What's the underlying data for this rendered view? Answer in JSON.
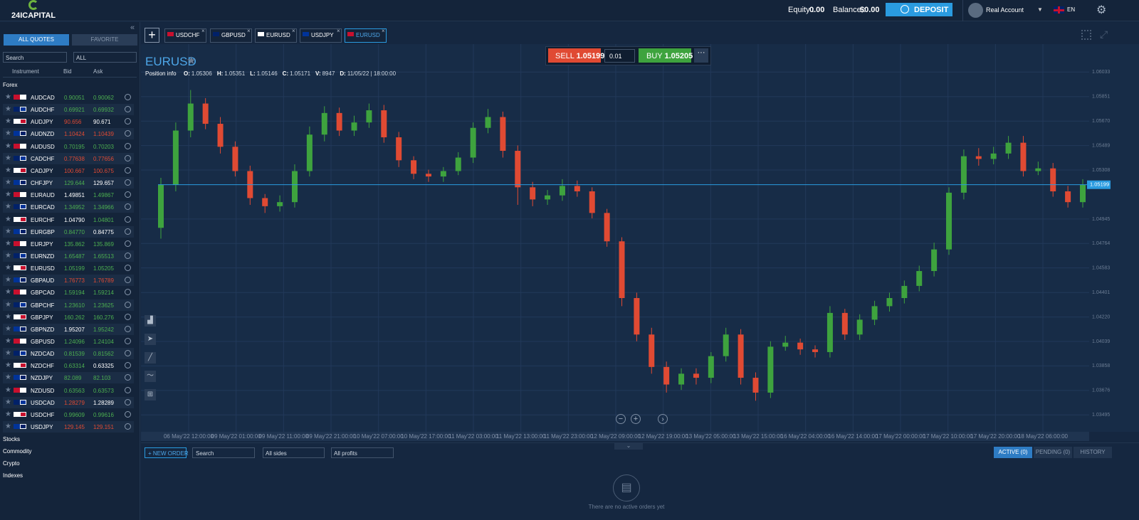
{
  "header": {
    "logo": "24ICAPITAL",
    "equity_label": "Equity :",
    "equity": "0.00",
    "balance_label": "Balance :",
    "balance": "$0.00",
    "deposit": "DEPOSIT",
    "account": "Real Account",
    "language": "EN"
  },
  "sidebar": {
    "tabs": [
      "ALL QUOTES",
      "FAVORITE"
    ],
    "search": "Search",
    "filter": "ALL",
    "columns": [
      "Instrument",
      "Bid",
      "Ask"
    ],
    "group": "Forex",
    "rows": [
      {
        "symbol": "AUDCAD",
        "bid": "0.90051",
        "ask": "0.90062",
        "bid_color": "#4caf50",
        "ask_color": "#4caf50"
      },
      {
        "symbol": "AUDCHF",
        "bid": "0.69921",
        "ask": "0.69932",
        "bid_color": "#4caf50",
        "ask_color": "#4caf50"
      },
      {
        "symbol": "AUDJPY",
        "bid": "90.656",
        "ask": "90.671",
        "bid_color": "#e04a33",
        "ask_color": "#ffffff"
      },
      {
        "symbol": "AUDNZD",
        "bid": "1.10424",
        "ask": "1.10439",
        "bid_color": "#e04a33",
        "ask_color": "#e04a33"
      },
      {
        "symbol": "AUDUSD",
        "bid": "0.70195",
        "ask": "0.70203",
        "bid_color": "#4caf50",
        "ask_color": "#4caf50"
      },
      {
        "symbol": "CADCHF",
        "bid": "0.77638",
        "ask": "0.77656",
        "bid_color": "#e04a33",
        "ask_color": "#e04a33"
      },
      {
        "symbol": "CADJPY",
        "bid": "100.667",
        "ask": "100.675",
        "bid_color": "#e04a33",
        "ask_color": "#e04a33"
      },
      {
        "symbol": "CHFJPY",
        "bid": "129.644",
        "ask": "129.657",
        "bid_color": "#4caf50",
        "ask_color": "#ffffff"
      },
      {
        "symbol": "EURAUD",
        "bid": "1.49851",
        "ask": "1.49867",
        "bid_color": "#ffffff",
        "ask_color": "#4caf50"
      },
      {
        "symbol": "EURCAD",
        "bid": "1.34952",
        "ask": "1.34966",
        "bid_color": "#4caf50",
        "ask_color": "#4caf50"
      },
      {
        "symbol": "EURCHF",
        "bid": "1.04790",
        "ask": "1.04801",
        "bid_color": "#ffffff",
        "ask_color": "#4caf50"
      },
      {
        "symbol": "EURGBP",
        "bid": "0.84770",
        "ask": "0.84775",
        "bid_color": "#4caf50",
        "ask_color": "#ffffff"
      },
      {
        "symbol": "EURJPY",
        "bid": "135.862",
        "ask": "135.869",
        "bid_color": "#4caf50",
        "ask_color": "#4caf50"
      },
      {
        "symbol": "EURNZD",
        "bid": "1.65487",
        "ask": "1.65513",
        "bid_color": "#4caf50",
        "ask_color": "#4caf50"
      },
      {
        "symbol": "EURUSD",
        "bid": "1.05199",
        "ask": "1.05205",
        "bid_color": "#4caf50",
        "ask_color": "#4caf50"
      },
      {
        "symbol": "GBPAUD",
        "bid": "1.76773",
        "ask": "1.76789",
        "bid_color": "#e04a33",
        "ask_color": "#e04a33"
      },
      {
        "symbol": "GBPCAD",
        "bid": "1.59194",
        "ask": "1.59214",
        "bid_color": "#4caf50",
        "ask_color": "#4caf50"
      },
      {
        "symbol": "GBPCHF",
        "bid": "1.23610",
        "ask": "1.23625",
        "bid_color": "#4caf50",
        "ask_color": "#4caf50"
      },
      {
        "symbol": "GBPJPY",
        "bid": "160.262",
        "ask": "160.276",
        "bid_color": "#4caf50",
        "ask_color": "#4caf50"
      },
      {
        "symbol": "GBPNZD",
        "bid": "1.95207",
        "ask": "1.95242",
        "bid_color": "#ffffff",
        "ask_color": "#4caf50"
      },
      {
        "symbol": "GBPUSD",
        "bid": "1.24096",
        "ask": "1.24104",
        "bid_color": "#4caf50",
        "ask_color": "#4caf50"
      },
      {
        "symbol": "NZDCAD",
        "bid": "0.81539",
        "ask": "0.81562",
        "bid_color": "#4caf50",
        "ask_color": "#4caf50"
      },
      {
        "symbol": "NZDCHF",
        "bid": "0.63314",
        "ask": "0.63325",
        "bid_color": "#4caf50",
        "ask_color": "#ffffff"
      },
      {
        "symbol": "NZDJPY",
        "bid": "82.089",
        "ask": "82.103",
        "bid_color": "#4caf50",
        "ask_color": "#4caf50"
      },
      {
        "symbol": "NZDUSD",
        "bid": "0.63563",
        "ask": "0.63573",
        "bid_color": "#4caf50",
        "ask_color": "#4caf50"
      },
      {
        "symbol": "USDCAD",
        "bid": "1.28279",
        "ask": "1.28289",
        "bid_color": "#e04a33",
        "ask_color": "#ffffff"
      },
      {
        "symbol": "USDCHF",
        "bid": "0.99609",
        "ask": "0.99616",
        "bid_color": "#4caf50",
        "ask_color": "#4caf50"
      },
      {
        "symbol": "USDJPY",
        "bid": "129.145",
        "ask": "129.151",
        "bid_color": "#e04a33",
        "ask_color": "#e04a33"
      }
    ],
    "groups": [
      "Stocks",
      "Commodity",
      "Crypto",
      "Indexes"
    ]
  },
  "tabs": {
    "items": [
      "USDCHF",
      "GBPUSD",
      "EURUSD",
      "USDJPY",
      "EURUSD"
    ],
    "active": 4
  },
  "trade": {
    "sell": "SELL",
    "sell_price": "1.05199",
    "lot": "0.01",
    "buy": "BUY",
    "buy_price": "1.05205"
  },
  "chart_data": {
    "type": "candlestick",
    "title": "EURUSD",
    "info": {
      "label": "Position info",
      "items": [
        {
          "key": "O:",
          "value": "1.05306"
        },
        {
          "key": "H:",
          "value": "1.05351"
        },
        {
          "key": "L:",
          "value": "1.05146"
        },
        {
          "key": "C:",
          "value": "1.05171"
        },
        {
          "key": "V:",
          "value": "8947"
        },
        {
          "key": "D:",
          "value": "11/05/22 | 18:00:00"
        }
      ]
    },
    "up_color": "#3ea33e",
    "down_color": "#e04a33",
    "open": [
      1.0488,
      1.052,
      1.056,
      1.058,
      1.0565,
      1.0548,
      1.053,
      1.051,
      1.0504,
      1.0507,
      1.053,
      1.0557,
      1.0573,
      1.056,
      1.0566,
      1.0575,
      1.0555,
      1.0538,
      1.0528,
      1.0526,
      1.053,
      1.054,
      1.0562,
      1.057,
      1.0545,
      1.0518,
      1.0509,
      1.0512,
      1.0519,
      1.0515,
      1.0499,
      1.0478,
      1.0436,
      1.0409,
      1.0385,
      1.0372,
      1.038,
      1.0377,
      1.0393,
      1.0409,
      1.0377,
      1.0366,
      1.04,
      1.0403,
      1.0398,
      1.0396,
      1.0425,
      1.0409,
      1.042,
      1.043,
      1.0436,
      1.0445,
      1.0456,
      1.0472,
      1.0514,
      1.0541,
      1.0539,
      1.0543,
      1.0551,
      1.053,
      1.0532,
      1.0515,
      1.0507
    ],
    "high": [
      1.0525,
      1.0566,
      1.059,
      1.0584,
      1.057,
      1.0552,
      1.0534,
      1.0513,
      1.0512,
      1.0535,
      1.0563,
      1.0578,
      1.0577,
      1.0571,
      1.058,
      1.0579,
      1.0559,
      1.0541,
      1.0531,
      1.0533,
      1.0544,
      1.0566,
      1.0576,
      1.0574,
      1.0549,
      1.0522,
      1.0516,
      1.0524,
      1.0523,
      1.0518,
      1.0502,
      1.0481,
      1.044,
      1.0414,
      1.0389,
      1.0384,
      1.0384,
      1.0396,
      1.0414,
      1.0413,
      1.0381,
      1.0404,
      1.0408,
      1.0406,
      1.0401,
      1.043,
      1.0428,
      1.0424,
      1.0434,
      1.044,
      1.0449,
      1.046,
      1.0477,
      1.0518,
      1.0546,
      1.0547,
      1.0548,
      1.0556,
      1.0556,
      1.0537,
      1.0536,
      1.0519,
      1.0524
    ],
    "low": [
      1.048,
      1.0515,
      1.0555,
      1.0561,
      1.0543,
      1.0526,
      1.0505,
      1.0499,
      1.05,
      1.0503,
      1.0526,
      1.0552,
      1.0556,
      1.0556,
      1.0562,
      1.0551,
      1.0533,
      1.0524,
      1.0522,
      1.0522,
      1.0527,
      1.0536,
      1.0558,
      1.054,
      1.0505,
      1.0504,
      1.0505,
      1.0508,
      1.0511,
      1.0495,
      1.0474,
      1.043,
      1.0404,
      1.038,
      1.0366,
      1.0368,
      1.0372,
      1.0373,
      1.0389,
      1.0372,
      1.036,
      1.0362,
      1.0397,
      1.0394,
      1.0392,
      1.0392,
      1.0405,
      1.0405,
      1.0416,
      1.0426,
      1.0432,
      1.0441,
      1.0452,
      1.0468,
      1.0509,
      1.0534,
      1.0535,
      1.0539,
      1.0526,
      1.0527,
      1.0511,
      1.0503,
      1.0503
    ],
    "close": [
      1.052,
      1.056,
      1.058,
      1.0565,
      1.0548,
      1.053,
      1.051,
      1.0504,
      1.0507,
      1.053,
      1.0557,
      1.0573,
      1.056,
      1.0566,
      1.0575,
      1.0555,
      1.0538,
      1.0528,
      1.0526,
      1.053,
      1.054,
      1.0562,
      1.057,
      1.0545,
      1.0518,
      1.0509,
      1.0512,
      1.0519,
      1.0515,
      1.0499,
      1.0478,
      1.0436,
      1.0409,
      1.0385,
      1.0372,
      1.038,
      1.0377,
      1.0393,
      1.0409,
      1.0377,
      1.0366,
      1.04,
      1.0403,
      1.0398,
      1.0396,
      1.0425,
      1.0409,
      1.042,
      1.043,
      1.0436,
      1.0445,
      1.0456,
      1.0472,
      1.0514,
      1.0541,
      1.0539,
      1.0543,
      1.0551,
      1.053,
      1.0532,
      1.0515,
      1.0507,
      1.052
    ],
    "x_labels": [
      "06 May'22 12:00:00",
      "09 May'22 01:00:00",
      "09 May'22 11:00:00",
      "09 May'22 21:00:00",
      "10 May'22 07:00:00",
      "10 May'22 17:00:00",
      "11 May'22 03:00:00",
      "11 May'22 13:00:00",
      "11 May'22 23:00:00",
      "12 May'22 09:00:00",
      "12 May'22 19:00:00",
      "13 May'22 05:00:00",
      "13 May'22 15:00:00",
      "16 May'22 04:00:00",
      "16 May'22 14:00:00",
      "17 May'22 00:00:00",
      "17 May'22 10:00:00",
      "17 May'22 20:00:00",
      "18 May'22 06:00:00"
    ],
    "ylim": [
      1.0337,
      1.0624
    ],
    "yticks": [
      {
        "value": 1.06033,
        "label": "1.06033"
      },
      {
        "value": 1.05851,
        "label": "1.05851"
      },
      {
        "value": 1.0567,
        "label": "1.05670"
      },
      {
        "value": 1.05489,
        "label": "1.05489"
      },
      {
        "value": 1.05308,
        "label": "1.05308"
      },
      {
        "value": 1.04945,
        "label": "1.04945"
      },
      {
        "value": 1.04764,
        "label": "1.04764"
      },
      {
        "value": 1.04583,
        "label": "1.04583"
      },
      {
        "value": 1.04401,
        "label": "1.04401"
      },
      {
        "value": 1.0422,
        "label": "1.04220"
      },
      {
        "value": 1.04039,
        "label": "1.04039"
      },
      {
        "value": 1.03858,
        "label": "1.03858"
      },
      {
        "value": 1.03676,
        "label": "1.03676"
      },
      {
        "value": 1.03495,
        "label": "1.03495"
      }
    ],
    "last_price": 1.05199,
    "grid": true
  },
  "orders": {
    "new_order": "NEW ORDER",
    "search": "Search",
    "sides": "All sides",
    "profits": "All profits",
    "tabs": [
      "ACTIVE (0)",
      "PENDING (0)",
      "HISTORY"
    ],
    "empty": "There are no active orders yet"
  }
}
